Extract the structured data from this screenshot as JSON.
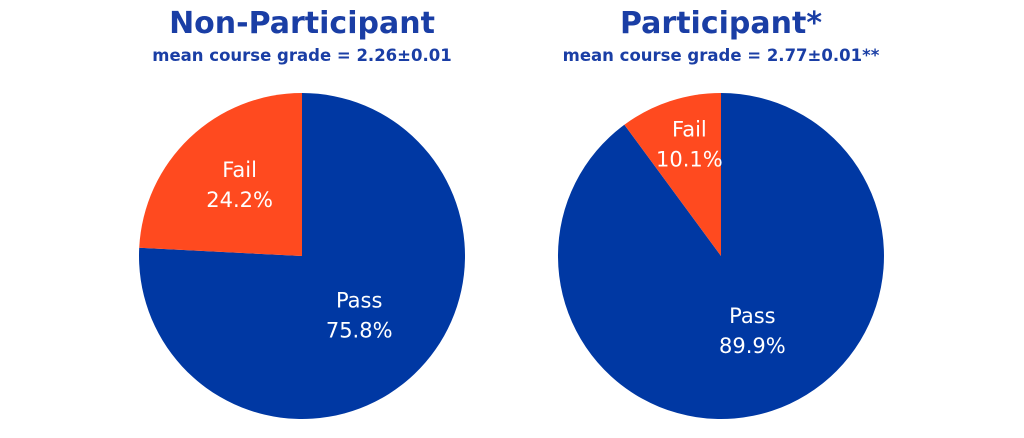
{
  "colors": {
    "title": "#1a3ea5",
    "pass": "#0038a3",
    "fail": "#ff4a1f",
    "label": "#ffffff"
  },
  "chart_data": [
    {
      "type": "pie",
      "title": "Non-Participant",
      "subtitle": "mean course grade =  2.26±0.01",
      "categories": [
        "Pass",
        "Fail"
      ],
      "values": [
        75.8,
        24.2
      ],
      "value_labels": [
        "75.8%",
        "24.2%"
      ]
    },
    {
      "type": "pie",
      "title": "Participant*",
      "subtitle": "mean course grade =  2.77±0.01**",
      "categories": [
        "Pass",
        "Fail"
      ],
      "values": [
        89.9,
        10.1
      ],
      "value_labels": [
        "89.9%",
        "10.1%"
      ]
    }
  ]
}
